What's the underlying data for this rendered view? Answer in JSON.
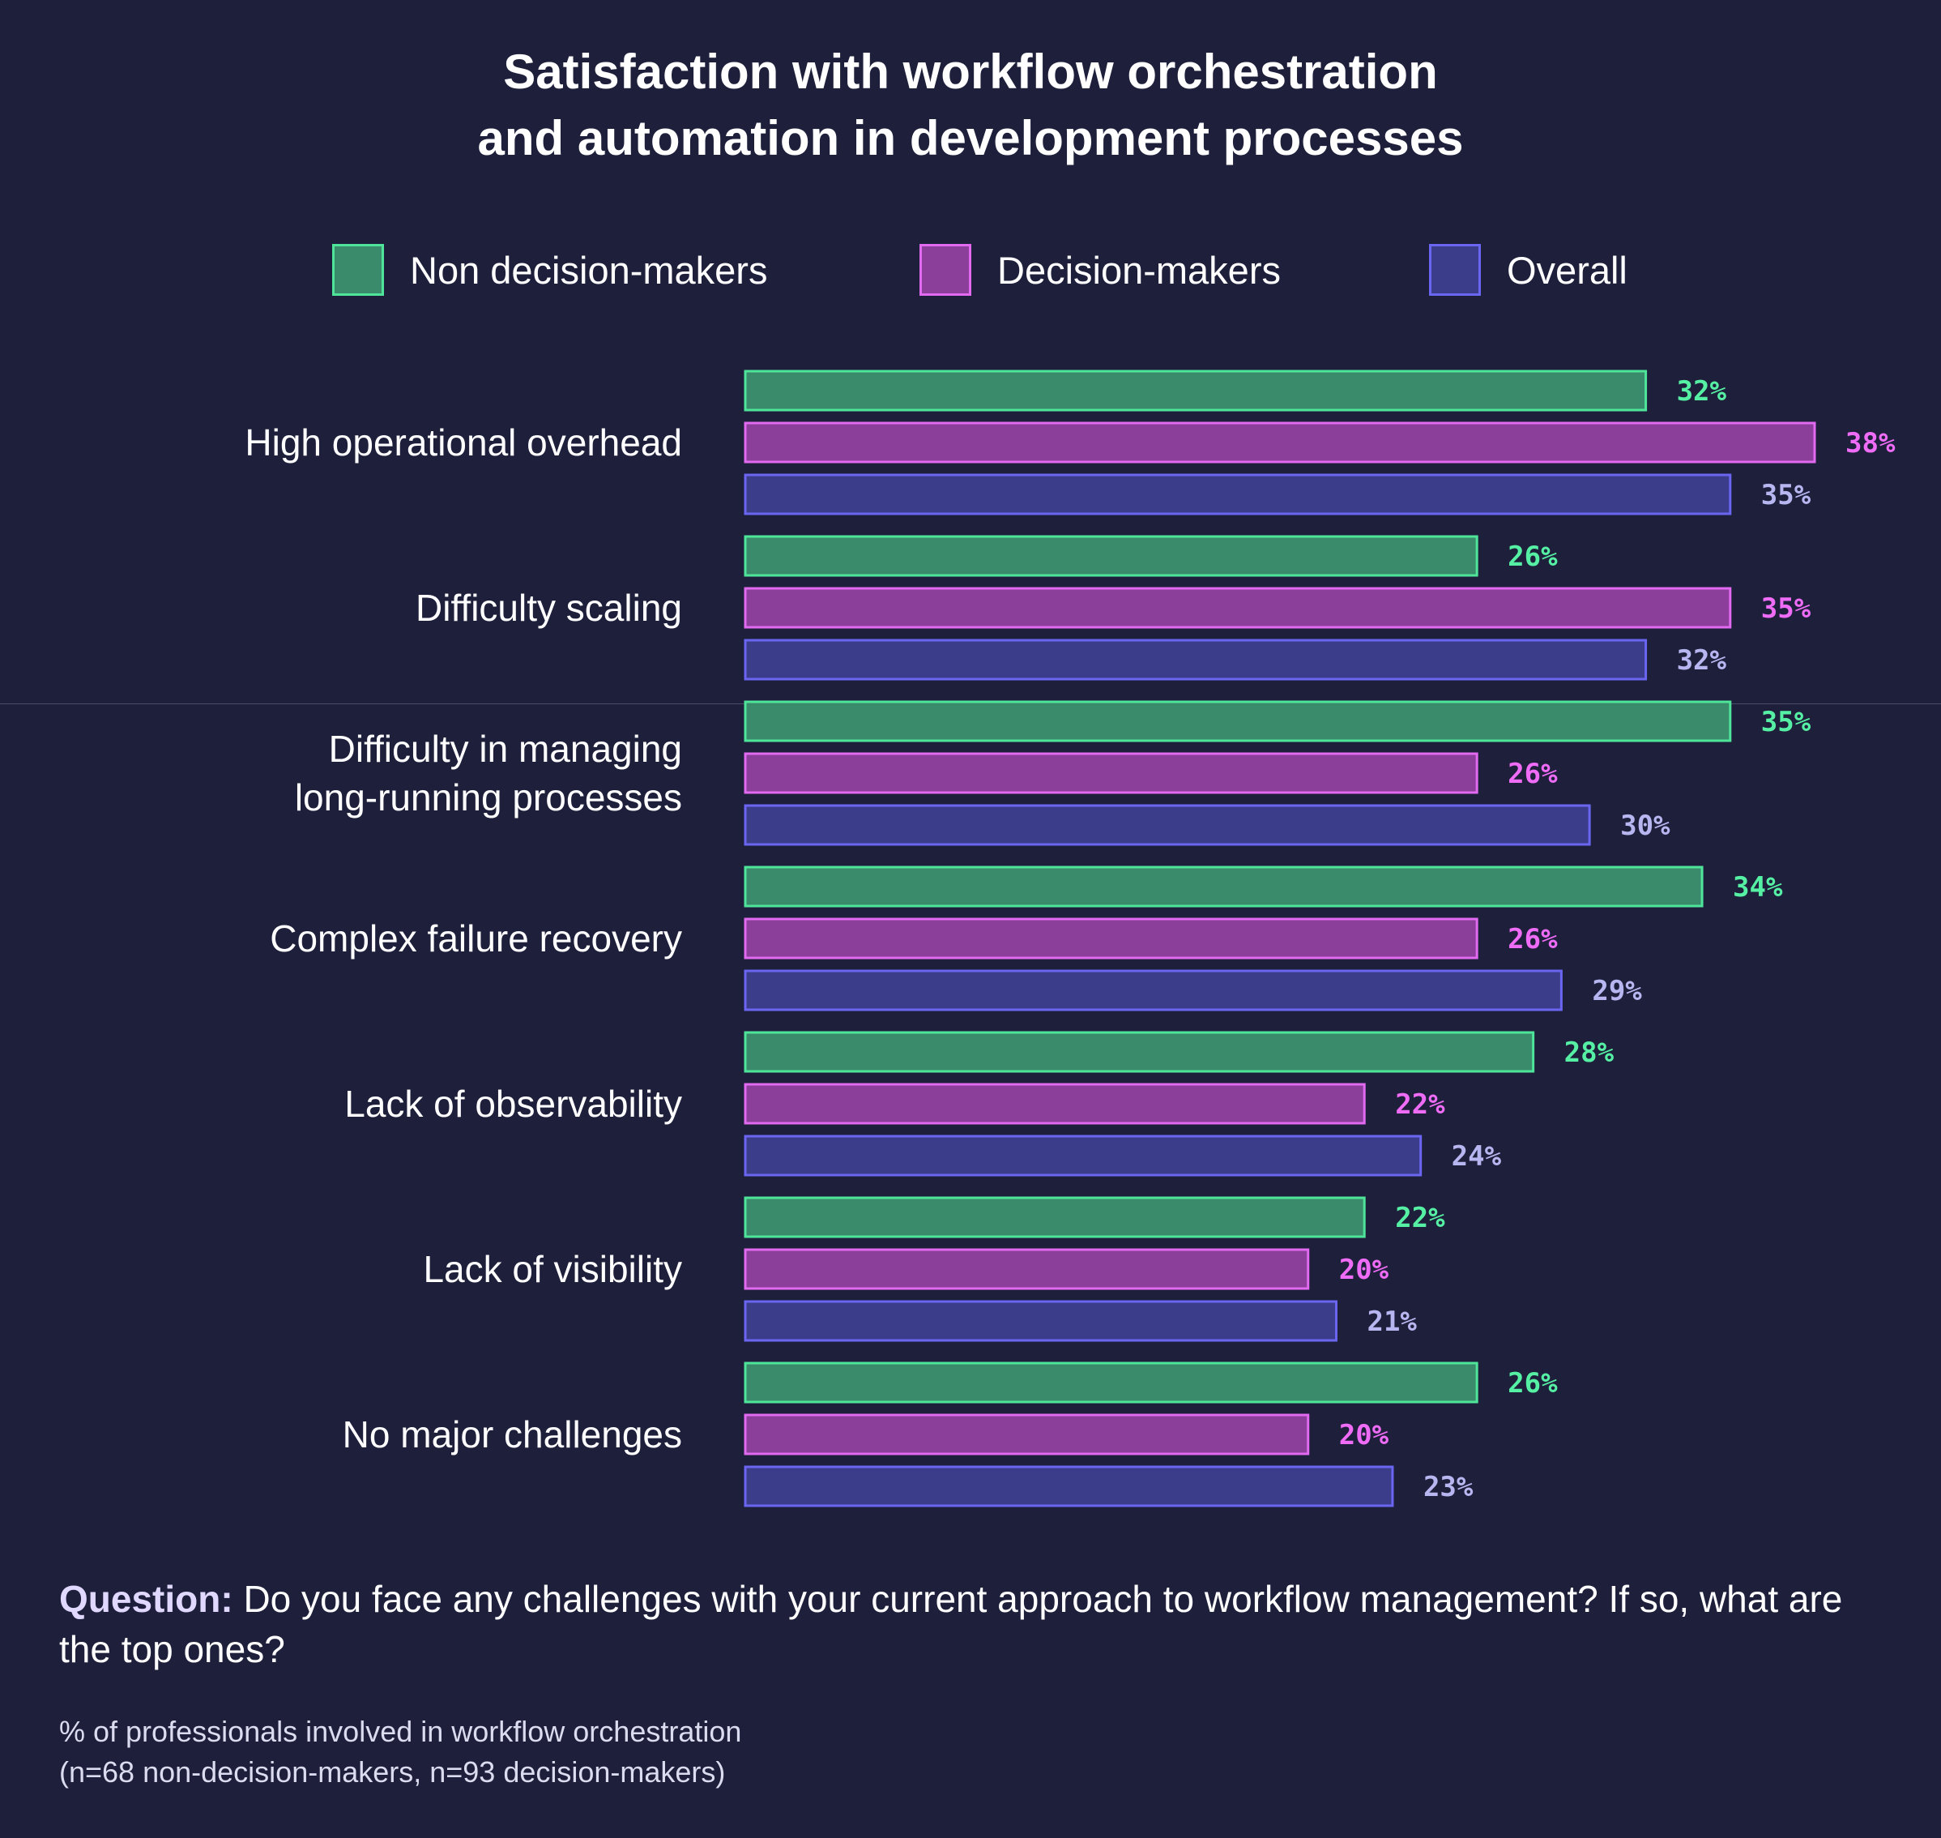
{
  "chart_data": {
    "type": "bar",
    "orientation": "horizontal",
    "title": "Satisfaction with workflow orchestration and automation in development processes",
    "title_lines": [
      "Satisfaction with workflow orchestration",
      "and automation in development processes"
    ],
    "categories": [
      [
        "High operational overhead"
      ],
      [
        "Difficulty scaling"
      ],
      [
        "Difficulty in managing",
        "long-running processes"
      ],
      [
        "Complex failure recovery"
      ],
      [
        "Lack of observability"
      ],
      [
        "Lack of visibility"
      ],
      [
        "No major challenges"
      ]
    ],
    "series": [
      {
        "name": "Non decision-makers",
        "fill": "#3a8b6b",
        "stroke": "#4ee59a",
        "label_color": "#56f0a4",
        "values": [
          32,
          26,
          35,
          34,
          28,
          22,
          26
        ]
      },
      {
        "name": "Decision-makers",
        "fill": "#8b3f9b",
        "stroke": "#e26af0",
        "label_color": "#ef6cf7",
        "values": [
          38,
          35,
          26,
          26,
          22,
          20,
          20
        ]
      },
      {
        "name": "Overall",
        "fill": "#3c3d8a",
        "stroke": "#6a66f2",
        "label_color": "#b8b6f0",
        "values": [
          35,
          32,
          30,
          29,
          24,
          21,
          23
        ]
      }
    ],
    "value_suffix": "%",
    "xlim": [
      0,
      38
    ],
    "grid": false,
    "legend_position": "top-center"
  },
  "legend": {
    "items": [
      "Non decision-makers",
      "Decision-makers",
      "Overall"
    ]
  },
  "footer": {
    "question_label": "Question:",
    "question_text": " Do you face any challenges with your current approach to workflow management? If so, what are the top ones?",
    "note_line1": "% of professionals involved in workflow orchestration",
    "note_line2": "(n=68 non-decision-makers, n=93 decision-makers)"
  },
  "colors": {
    "background": "#1e1f3b",
    "text": "#ffffff"
  }
}
